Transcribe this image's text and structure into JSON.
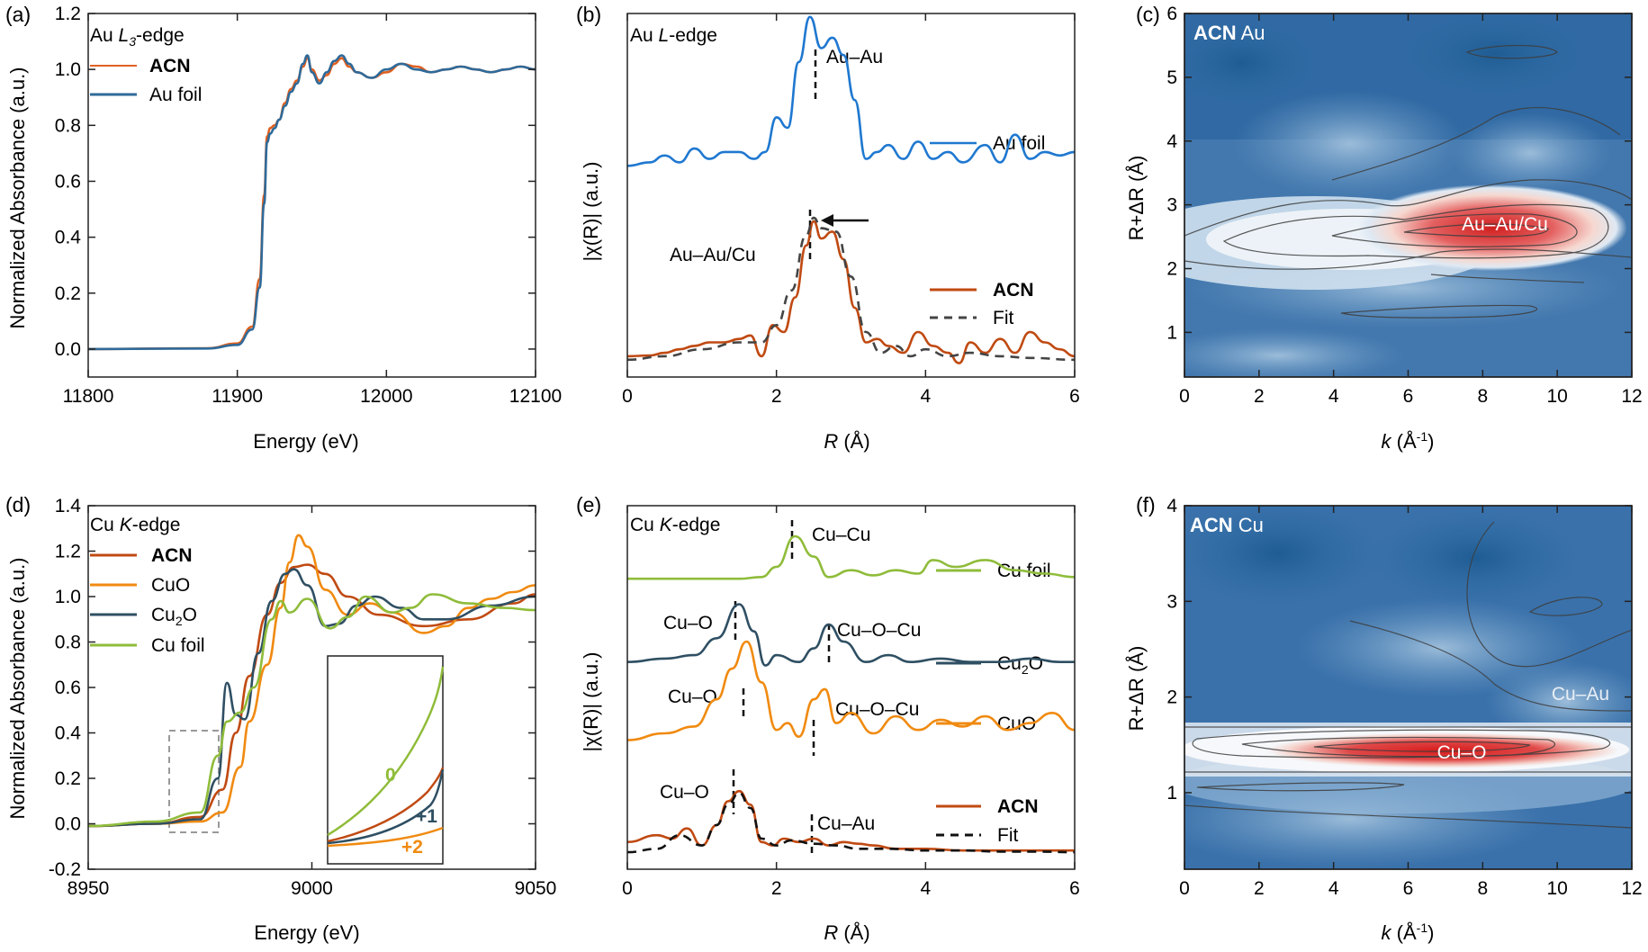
{
  "chart_data": [
    {
      "panel": "(a)",
      "type": "line",
      "xlim": [
        11800,
        12100
      ],
      "ylim": [
        -0.1,
        1.2
      ],
      "xticks": [
        "11800",
        "11900",
        "12000",
        "12100"
      ],
      "yticks": [
        "0.0",
        "0.2",
        "0.4",
        "0.6",
        "0.8",
        "1.0",
        "1.2"
      ],
      "xlabel": "Energy (eV)",
      "ylabel": "Normalized Absorbance (a.u.)",
      "annotation": "Au L3-edge",
      "series": [
        {
          "name": "ACN",
          "color": "#e06020",
          "x": [
            11800,
            11880,
            11900,
            11910,
            11915,
            11918,
            11920,
            11922,
            11925,
            11928,
            11932,
            11936,
            11940,
            11944,
            11947,
            11950,
            11955,
            11960,
            11965,
            11970,
            11975,
            11980,
            11990,
            12000,
            12010,
            12020,
            12030,
            12040,
            12050,
            12060,
            12070,
            12080,
            12090,
            12100
          ],
          "y": [
            0.0,
            0.003,
            0.02,
            0.08,
            0.25,
            0.55,
            0.76,
            0.79,
            0.8,
            0.82,
            0.88,
            0.93,
            0.96,
            1.01,
            1.04,
            1.0,
            0.96,
            0.98,
            1.02,
            1.04,
            1.01,
            0.99,
            0.97,
            0.99,
            1.02,
            1.01,
            0.99,
            1.0,
            1.01,
            1.0,
            0.99,
            1.0,
            1.01,
            1.0
          ]
        },
        {
          "name": "Au foil",
          "color": "#2e6a9a",
          "x": [
            11800,
            11880,
            11900,
            11910,
            11915,
            11918,
            11920,
            11922,
            11925,
            11928,
            11932,
            11936,
            11940,
            11944,
            11947,
            11950,
            11955,
            11960,
            11965,
            11970,
            11975,
            11980,
            11990,
            12000,
            12010,
            12020,
            12030,
            12040,
            12050,
            12060,
            12070,
            12080,
            12090,
            12100
          ],
          "y": [
            0.0,
            0.002,
            0.015,
            0.07,
            0.22,
            0.52,
            0.74,
            0.77,
            0.79,
            0.82,
            0.87,
            0.92,
            0.95,
            1.02,
            1.05,
            0.99,
            0.95,
            0.99,
            1.03,
            1.05,
            1.02,
            0.99,
            0.97,
            1.0,
            1.02,
            1.0,
            0.99,
            1.0,
            1.01,
            1.0,
            0.99,
            1.0,
            1.01,
            1.0
          ]
        }
      ]
    },
    {
      "panel": "(b)",
      "type": "line",
      "xlim": [
        0,
        6
      ],
      "ylim": [
        0,
        1
      ],
      "xticks": [
        "0",
        "2",
        "4",
        "6"
      ],
      "xlabel": "R (Å)",
      "ylabel": "|χ(R)| (a.u.)",
      "annotation": "Au L-edge",
      "peak_labels": [
        "Au–Au",
        "Au–Au/Cu"
      ],
      "series": [
        {
          "name": "Au foil",
          "color": "#1f78d0",
          "x": [
            0,
            0.3,
            0.5,
            0.7,
            0.9,
            1.1,
            1.3,
            1.5,
            1.7,
            1.85,
            2.0,
            2.15,
            2.3,
            2.45,
            2.6,
            2.75,
            2.9,
            3.05,
            3.2,
            3.35,
            3.5,
            3.7,
            3.9,
            4.1,
            4.3,
            4.5,
            4.8,
            5.0,
            5.2,
            5.4,
            5.6,
            5.8,
            6.0
          ],
          "y": [
            0.56,
            0.57,
            0.59,
            0.57,
            0.61,
            0.58,
            0.6,
            0.6,
            0.58,
            0.6,
            0.7,
            0.67,
            0.86,
            0.99,
            0.9,
            0.93,
            0.88,
            0.75,
            0.58,
            0.6,
            0.62,
            0.58,
            0.63,
            0.58,
            0.6,
            0.57,
            0.62,
            0.57,
            0.65,
            0.58,
            0.6,
            0.59,
            0.6
          ]
        },
        {
          "name": "ACN",
          "color": "#c04a12",
          "x": [
            0,
            0.3,
            0.5,
            0.7,
            0.9,
            1.1,
            1.3,
            1.5,
            1.65,
            1.8,
            1.95,
            2.1,
            2.25,
            2.4,
            2.5,
            2.6,
            2.75,
            2.9,
            3.05,
            3.2,
            3.35,
            3.5,
            3.7,
            3.9,
            4.1,
            4.3,
            4.45,
            4.6,
            4.8,
            5.0,
            5.2,
            5.4,
            5.6,
            5.8,
            6.0
          ],
          "y": [
            0.01,
            0.012,
            0.02,
            0.03,
            0.04,
            0.05,
            0.05,
            0.06,
            0.07,
            0.01,
            0.1,
            0.08,
            0.18,
            0.33,
            0.4,
            0.35,
            0.37,
            0.29,
            0.15,
            0.05,
            0.06,
            0.04,
            0.02,
            0.08,
            0.04,
            0.02,
            -0.01,
            0.05,
            0.02,
            0.06,
            0.02,
            0.08,
            0.05,
            0.03,
            0.01
          ]
        },
        {
          "name": "Fit",
          "color": "#444444",
          "dash": true,
          "x": [
            0,
            0.5,
            1.0,
            1.5,
            1.8,
            2.0,
            2.2,
            2.4,
            2.5,
            2.6,
            2.8,
            3.0,
            3.2,
            3.4,
            3.6,
            3.8,
            4.0,
            4.3,
            4.6,
            5.0,
            5.4,
            6.0
          ],
          "y": [
            0.0,
            0.01,
            0.03,
            0.05,
            0.05,
            0.1,
            0.2,
            0.36,
            0.41,
            0.38,
            0.37,
            0.24,
            0.08,
            0.02,
            0.04,
            0.01,
            0.03,
            0.01,
            0.02,
            0.01,
            0.005,
            0.0
          ]
        }
      ]
    },
    {
      "panel": "(c)",
      "type": "heatmap",
      "xlim": [
        0,
        12
      ],
      "ylim": [
        0.3,
        6
      ],
      "xticks": [
        "0",
        "2",
        "4",
        "6",
        "8",
        "10",
        "12"
      ],
      "yticks": [
        "1",
        "2",
        "3",
        "4",
        "5",
        "6"
      ],
      "xlabel": "k (Å⁻¹)",
      "ylabel": "R+ΔR (Å)",
      "title_bold": "ACN",
      "title_rest": "Au",
      "peak_label": "Au–Au/Cu",
      "peak_center": {
        "k": 8.3,
        "r": 2.55
      }
    },
    {
      "panel": "(d)",
      "type": "line",
      "xlim": [
        8950,
        9050
      ],
      "ylim": [
        -0.2,
        1.4
      ],
      "xticks": [
        "8950",
        "9000",
        "9050"
      ],
      "yticks": [
        "-0.2",
        "0.0",
        "0.2",
        "0.4",
        "0.6",
        "0.8",
        "1.0",
        "1.2",
        "1.4"
      ],
      "xlabel": "Energy (eV)",
      "ylabel": "Normalized Absorbance (a.u.)",
      "annotation": "Cu K-edge",
      "inset_labels": [
        "0",
        "+1",
        "+2"
      ],
      "series": [
        {
          "name": "ACN",
          "color": "#c04a12",
          "x": [
            8950,
            8965,
            8975,
            8980,
            8983,
            8986,
            8990,
            8993,
            8996,
            8999,
            9003,
            9008,
            9015,
            9025,
            9035,
            9045,
            9050
          ],
          "y": [
            -0.01,
            0.0,
            0.03,
            0.15,
            0.4,
            0.65,
            0.92,
            1.06,
            1.13,
            1.14,
            1.1,
            1.0,
            0.92,
            0.87,
            0.9,
            0.97,
            1.01
          ]
        },
        {
          "name": "CuO",
          "color": "#f08a10",
          "x": [
            8950,
            8965,
            8975,
            8980,
            8984,
            8986,
            8990,
            8993,
            8995,
            8997,
            8999,
            9003,
            9008,
            9013,
            9018,
            9025,
            9030,
            9035,
            9040,
            9045,
            9050
          ],
          "y": [
            -0.01,
            0.0,
            0.01,
            0.05,
            0.25,
            0.45,
            0.7,
            0.95,
            1.15,
            1.27,
            1.22,
            1.03,
            0.92,
            0.97,
            0.93,
            0.84,
            0.87,
            0.95,
            0.99,
            1.02,
            1.05
          ]
        },
        {
          "name": "Cu2O",
          "color": "#2f4f63",
          "x": [
            8950,
            8965,
            8975,
            8979,
            8981,
            8983,
            8985,
            8988,
            8991,
            8994,
            8996,
            8999,
            9003,
            9006,
            9010,
            9014,
            9020,
            9025,
            9030,
            9040,
            9050
          ],
          "y": [
            -0.01,
            0.0,
            0.02,
            0.2,
            0.62,
            0.48,
            0.46,
            0.75,
            0.98,
            1.1,
            1.12,
            1.05,
            0.87,
            0.88,
            0.96,
            1.0,
            0.95,
            0.9,
            0.9,
            0.96,
            1.0
          ]
        },
        {
          "name": "Cu foil",
          "color": "#8fbc3a",
          "x": [
            8950,
            8965,
            8975,
            8979,
            8981,
            8984,
            8987,
            8991,
            8993,
            8995,
            8999,
            9004,
            9008,
            9012,
            9018,
            9022,
            9027,
            9035,
            9043,
            9050
          ],
          "y": [
            -0.01,
            0.01,
            0.05,
            0.3,
            0.45,
            0.49,
            0.6,
            0.9,
            0.98,
            0.93,
            0.99,
            0.86,
            0.91,
            1.0,
            0.93,
            0.95,
            1.01,
            0.97,
            0.95,
            0.94
          ]
        }
      ]
    },
    {
      "panel": "(e)",
      "type": "line",
      "xlim": [
        0,
        6
      ],
      "ylim": [
        0,
        1
      ],
      "xticks": [
        "0",
        "2",
        "4",
        "6"
      ],
      "xlabel": "R (Å)",
      "ylabel": "|χ(R)| (a.u.)",
      "annotation": "Cu K-edge",
      "peak_labels": [
        "Cu–Cu",
        "Cu–O",
        "Cu–O–Cu",
        "Cu–O",
        "Cu–O–Cu",
        "Cu–O",
        "Cu–Au"
      ],
      "series": [
        {
          "name": "Cu foil",
          "color": "#8fbc3a",
          "x": [
            0,
            1.0,
            1.5,
            1.8,
            2.0,
            2.25,
            2.5,
            2.7,
            3.0,
            3.3,
            3.6,
            3.9,
            4.1,
            4.4,
            4.8,
            5.2,
            5.6,
            6.0
          ],
          "y": [
            0.805,
            0.805,
            0.805,
            0.81,
            0.84,
            0.93,
            0.87,
            0.81,
            0.83,
            0.815,
            0.83,
            0.82,
            0.86,
            0.84,
            0.86,
            0.83,
            0.82,
            0.81
          ]
        },
        {
          "name": "Cu2O",
          "color": "#2f4f63",
          "x": [
            0,
            0.5,
            0.9,
            1.2,
            1.5,
            1.7,
            1.85,
            2.0,
            2.3,
            2.5,
            2.7,
            2.9,
            3.2,
            3.5,
            3.8,
            4.2,
            4.6,
            5.0,
            5.4,
            5.8,
            6.0
          ],
          "y": [
            0.56,
            0.57,
            0.58,
            0.63,
            0.73,
            0.65,
            0.55,
            0.58,
            0.56,
            0.6,
            0.67,
            0.62,
            0.56,
            0.58,
            0.56,
            0.57,
            0.56,
            0.56,
            0.57,
            0.56,
            0.56
          ]
        },
        {
          "name": "CuO",
          "color": "#f08a10",
          "x": [
            0,
            0.5,
            0.9,
            1.2,
            1.4,
            1.6,
            1.8,
            2.0,
            2.15,
            2.3,
            2.5,
            2.65,
            2.8,
            3.0,
            3.3,
            3.6,
            3.9,
            4.2,
            4.5,
            4.8,
            5.1,
            5.4,
            5.7,
            6.0
          ],
          "y": [
            0.33,
            0.35,
            0.37,
            0.45,
            0.54,
            0.62,
            0.5,
            0.36,
            0.38,
            0.34,
            0.45,
            0.48,
            0.38,
            0.41,
            0.35,
            0.4,
            0.36,
            0.39,
            0.37,
            0.4,
            0.36,
            0.38,
            0.41,
            0.36
          ]
        },
        {
          "name": "ACN",
          "color": "#c04a12",
          "x": [
            0,
            0.4,
            0.6,
            0.8,
            1.0,
            1.2,
            1.35,
            1.5,
            1.65,
            1.8,
            1.95,
            2.1,
            2.3,
            2.5,
            2.7,
            2.9,
            3.1,
            3.3,
            3.6,
            4.0,
            4.5,
            5.0,
            5.5,
            6.0
          ],
          "y": [
            0.03,
            0.05,
            0.04,
            0.07,
            0.02,
            0.08,
            0.15,
            0.18,
            0.14,
            0.03,
            0.02,
            0.04,
            0.03,
            0.04,
            0.02,
            0.03,
            0.025,
            0.02,
            0.01,
            0.01,
            0.005,
            0.005,
            0.005,
            0.005
          ]
        },
        {
          "name": "Fit",
          "color": "#111111",
          "dash": true,
          "x": [
            0,
            0.4,
            0.7,
            1.0,
            1.2,
            1.35,
            1.5,
            1.65,
            1.8,
            2.0,
            2.2,
            2.5,
            2.8,
            3.1,
            3.5,
            4.0,
            4.5,
            5.0,
            5.5,
            6.0
          ],
          "y": [
            0.0,
            0.01,
            0.05,
            0.02,
            0.08,
            0.14,
            0.175,
            0.13,
            0.04,
            0.02,
            0.035,
            0.025,
            0.02,
            0.01,
            0.01,
            0.005,
            0.005,
            0.002,
            0.002,
            0.0
          ]
        }
      ]
    },
    {
      "panel": "(f)",
      "type": "heatmap",
      "xlim": [
        0,
        12
      ],
      "ylim": [
        0.2,
        4
      ],
      "xticks": [
        "0",
        "2",
        "4",
        "6",
        "8",
        "10",
        "12"
      ],
      "yticks": [
        "1",
        "2",
        "3",
        "4"
      ],
      "xlabel": "k (Å⁻¹)",
      "ylabel": "R+ΔR (Å)",
      "title_bold": "ACN",
      "title_rest": "Cu",
      "peak_label": "Cu–O",
      "secondary_label": "Cu–Au",
      "peak_center": {
        "k": 6.5,
        "r": 1.45
      }
    }
  ]
}
